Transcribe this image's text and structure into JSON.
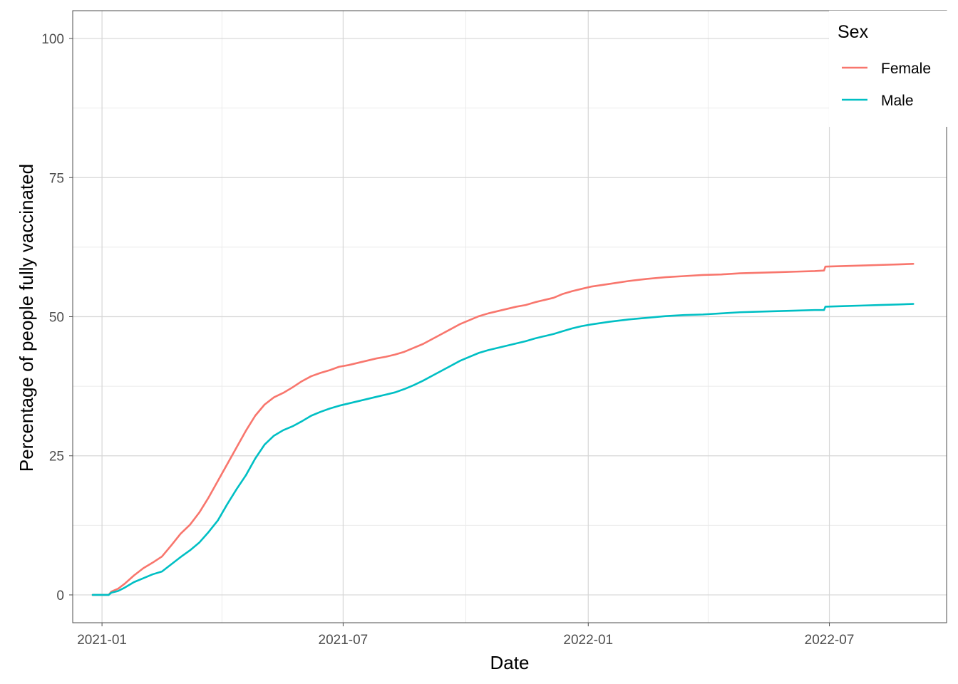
{
  "chart_data": {
    "type": "line",
    "title": "",
    "xlabel": "Date",
    "ylabel": "Percentage of people fully vaccinated",
    "x_range": [
      "2020-12-10",
      "2022-09-27"
    ],
    "ylim": [
      -5,
      105
    ],
    "x_ticks": [
      {
        "date": "2021-01-01",
        "label": "2021-01"
      },
      {
        "date": "2021-07-01",
        "label": "2021-07"
      },
      {
        "date": "2022-01-01",
        "label": "2022-01"
      },
      {
        "date": "2022-07-01",
        "label": "2022-07"
      }
    ],
    "x_minor_ticks": [
      "2021-04-01",
      "2021-10-01",
      "2022-04-01"
    ],
    "y_ticks": [
      {
        "value": 0,
        "label": "0"
      },
      {
        "value": 25,
        "label": "25"
      },
      {
        "value": 50,
        "label": "50"
      },
      {
        "value": 75,
        "label": "75"
      },
      {
        "value": 100,
        "label": "100"
      }
    ],
    "y_minor_ticks": [
      12.5,
      37.5,
      62.5,
      87.5
    ],
    "grid": true,
    "legend": {
      "title": "Sex",
      "position": "top-right"
    },
    "series": [
      {
        "name": "Female",
        "color": "#F8766D",
        "points": [
          [
            "2020-12-25",
            0.0
          ],
          [
            "2021-01-06",
            0.0
          ],
          [
            "2021-01-08",
            0.6
          ],
          [
            "2021-01-13",
            1.1
          ],
          [
            "2021-01-18",
            2.0
          ],
          [
            "2021-01-25",
            3.5
          ],
          [
            "2021-02-01",
            4.8
          ],
          [
            "2021-02-08",
            5.8
          ],
          [
            "2021-02-15",
            6.9
          ],
          [
            "2021-02-22",
            8.9
          ],
          [
            "2021-03-01",
            11.0
          ],
          [
            "2021-03-08",
            12.6
          ],
          [
            "2021-03-15",
            14.8
          ],
          [
            "2021-03-22",
            17.5
          ],
          [
            "2021-03-29",
            20.5
          ],
          [
            "2021-04-05",
            23.5
          ],
          [
            "2021-04-12",
            26.5
          ],
          [
            "2021-04-19",
            29.5
          ],
          [
            "2021-04-26",
            32.2
          ],
          [
            "2021-05-03",
            34.2
          ],
          [
            "2021-05-10",
            35.5
          ],
          [
            "2021-05-17",
            36.3
          ],
          [
            "2021-05-24",
            37.3
          ],
          [
            "2021-05-31",
            38.4
          ],
          [
            "2021-06-07",
            39.3
          ],
          [
            "2021-06-14",
            39.9
          ],
          [
            "2021-06-21",
            40.4
          ],
          [
            "2021-06-28",
            41.0
          ],
          [
            "2021-07-05",
            41.3
          ],
          [
            "2021-07-12",
            41.7
          ],
          [
            "2021-07-19",
            42.1
          ],
          [
            "2021-07-26",
            42.5
          ],
          [
            "2021-08-02",
            42.8
          ],
          [
            "2021-08-09",
            43.2
          ],
          [
            "2021-08-16",
            43.7
          ],
          [
            "2021-08-23",
            44.4
          ],
          [
            "2021-08-30",
            45.1
          ],
          [
            "2021-09-06",
            46.0
          ],
          [
            "2021-09-13",
            46.9
          ],
          [
            "2021-09-20",
            47.8
          ],
          [
            "2021-09-27",
            48.7
          ],
          [
            "2021-10-04",
            49.4
          ],
          [
            "2021-10-11",
            50.1
          ],
          [
            "2021-10-18",
            50.6
          ],
          [
            "2021-10-25",
            51.0
          ],
          [
            "2021-11-01",
            51.4
          ],
          [
            "2021-11-08",
            51.8
          ],
          [
            "2021-11-15",
            52.1
          ],
          [
            "2021-11-22",
            52.6
          ],
          [
            "2021-11-29",
            53.0
          ],
          [
            "2021-12-06",
            53.4
          ],
          [
            "2021-12-13",
            54.1
          ],
          [
            "2021-12-20",
            54.6
          ],
          [
            "2021-12-27",
            55.0
          ],
          [
            "2022-01-03",
            55.4
          ],
          [
            "2022-01-17",
            55.9
          ],
          [
            "2022-01-31",
            56.4
          ],
          [
            "2022-02-14",
            56.8
          ],
          [
            "2022-02-28",
            57.1
          ],
          [
            "2022-03-14",
            57.3
          ],
          [
            "2022-03-28",
            57.5
          ],
          [
            "2022-04-11",
            57.6
          ],
          [
            "2022-04-25",
            57.8
          ],
          [
            "2022-05-09",
            57.9
          ],
          [
            "2022-05-23",
            58.0
          ],
          [
            "2022-06-06",
            58.1
          ],
          [
            "2022-06-20",
            58.2
          ],
          [
            "2022-06-27",
            58.3
          ],
          [
            "2022-06-28",
            59.0
          ],
          [
            "2022-07-11",
            59.1
          ],
          [
            "2022-07-25",
            59.2
          ],
          [
            "2022-08-08",
            59.3
          ],
          [
            "2022-08-22",
            59.4
          ],
          [
            "2022-09-02",
            59.5
          ]
        ]
      },
      {
        "name": "Male",
        "color": "#00BFC4",
        "points": [
          [
            "2020-12-25",
            0.0
          ],
          [
            "2021-01-06",
            0.0
          ],
          [
            "2021-01-08",
            0.4
          ],
          [
            "2021-01-13",
            0.7
          ],
          [
            "2021-01-18",
            1.3
          ],
          [
            "2021-01-25",
            2.3
          ],
          [
            "2021-02-01",
            3.0
          ],
          [
            "2021-02-08",
            3.7
          ],
          [
            "2021-02-15",
            4.2
          ],
          [
            "2021-02-22",
            5.5
          ],
          [
            "2021-03-01",
            6.8
          ],
          [
            "2021-03-08",
            8.0
          ],
          [
            "2021-03-15",
            9.4
          ],
          [
            "2021-03-22",
            11.3
          ],
          [
            "2021-03-29",
            13.4
          ],
          [
            "2021-04-05",
            16.3
          ],
          [
            "2021-04-12",
            19.0
          ],
          [
            "2021-04-19",
            21.5
          ],
          [
            "2021-04-26",
            24.5
          ],
          [
            "2021-05-03",
            27.0
          ],
          [
            "2021-05-10",
            28.6
          ],
          [
            "2021-05-17",
            29.6
          ],
          [
            "2021-05-24",
            30.3
          ],
          [
            "2021-05-31",
            31.2
          ],
          [
            "2021-06-07",
            32.2
          ],
          [
            "2021-06-14",
            32.9
          ],
          [
            "2021-06-21",
            33.5
          ],
          [
            "2021-06-28",
            34.0
          ],
          [
            "2021-07-05",
            34.4
          ],
          [
            "2021-07-12",
            34.8
          ],
          [
            "2021-07-19",
            35.2
          ],
          [
            "2021-07-26",
            35.6
          ],
          [
            "2021-08-02",
            36.0
          ],
          [
            "2021-08-09",
            36.4
          ],
          [
            "2021-08-16",
            37.0
          ],
          [
            "2021-08-23",
            37.7
          ],
          [
            "2021-08-30",
            38.5
          ],
          [
            "2021-09-06",
            39.4
          ],
          [
            "2021-09-13",
            40.3
          ],
          [
            "2021-09-20",
            41.2
          ],
          [
            "2021-09-27",
            42.1
          ],
          [
            "2021-10-04",
            42.8
          ],
          [
            "2021-10-11",
            43.5
          ],
          [
            "2021-10-18",
            44.0
          ],
          [
            "2021-10-25",
            44.4
          ],
          [
            "2021-11-01",
            44.8
          ],
          [
            "2021-11-08",
            45.2
          ],
          [
            "2021-11-15",
            45.6
          ],
          [
            "2021-11-22",
            46.1
          ],
          [
            "2021-11-29",
            46.5
          ],
          [
            "2021-12-06",
            46.9
          ],
          [
            "2021-12-13",
            47.4
          ],
          [
            "2021-12-20",
            47.9
          ],
          [
            "2021-12-27",
            48.3
          ],
          [
            "2022-01-03",
            48.6
          ],
          [
            "2022-01-17",
            49.1
          ],
          [
            "2022-01-31",
            49.5
          ],
          [
            "2022-02-14",
            49.8
          ],
          [
            "2022-02-28",
            50.1
          ],
          [
            "2022-03-14",
            50.3
          ],
          [
            "2022-03-28",
            50.4
          ],
          [
            "2022-04-11",
            50.6
          ],
          [
            "2022-04-25",
            50.8
          ],
          [
            "2022-05-09",
            50.9
          ],
          [
            "2022-05-23",
            51.0
          ],
          [
            "2022-06-06",
            51.1
          ],
          [
            "2022-06-20",
            51.2
          ],
          [
            "2022-06-27",
            51.2
          ],
          [
            "2022-06-28",
            51.8
          ],
          [
            "2022-07-11",
            51.9
          ],
          [
            "2022-07-25",
            52.0
          ],
          [
            "2022-08-08",
            52.1
          ],
          [
            "2022-08-22",
            52.2
          ],
          [
            "2022-09-02",
            52.3
          ]
        ]
      }
    ]
  }
}
